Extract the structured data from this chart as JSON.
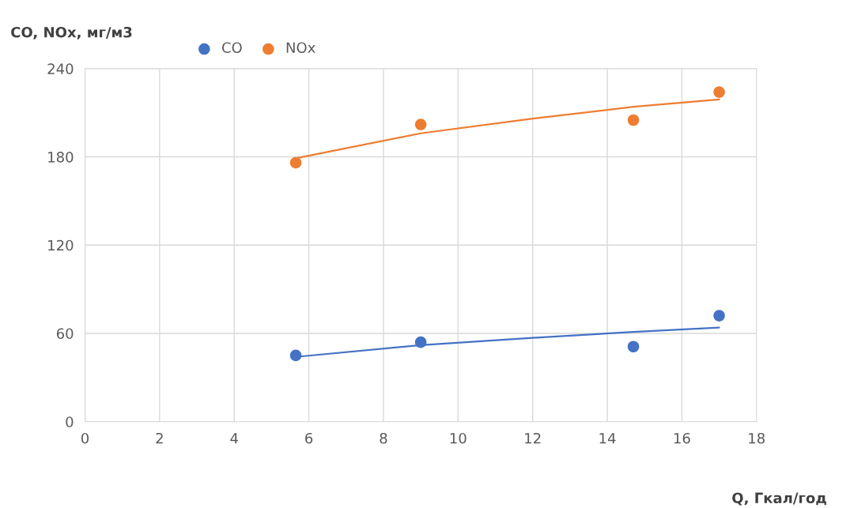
{
  "chart_data": {
    "type": "scatter",
    "xlabel": "Q, Гкал/год",
    "ylabel": "CO, NOx, мг/м3",
    "xlim": [
      0,
      18
    ],
    "xticks": [
      0,
      2,
      4,
      6,
      8,
      10,
      12,
      14,
      16,
      18
    ],
    "ylim": [
      0,
      240
    ],
    "yticks": [
      0,
      60,
      120,
      180,
      240
    ],
    "grid": true,
    "legend": "top",
    "series": [
      {
        "name": "CO",
        "marker": "circle",
        "color": "#4472c4",
        "x": [
          5.65,
          9.0,
          14.7,
          17.0
        ],
        "values": [
          45,
          54,
          51,
          72
        ]
      },
      {
        "name": "NOx",
        "marker": "circle",
        "color": "#ed7d31",
        "x": [
          5.65,
          9.0,
          14.7,
          17.0
        ],
        "values": [
          176,
          202,
          205,
          224
        ]
      },
      {
        "type": "line",
        "marker": "none",
        "color": "#4472c4",
        "x": [
          5.65,
          9.0,
          12.0,
          14.7,
          17.0
        ],
        "values": [
          44,
          52,
          57,
          61,
          64
        ]
      },
      {
        "type": "line",
        "marker": "none",
        "color": "#ed7d31",
        "x": [
          5.65,
          9.0,
          12.0,
          14.7,
          17.0
        ],
        "values": [
          179,
          196,
          206,
          214,
          219
        ]
      }
    ]
  }
}
